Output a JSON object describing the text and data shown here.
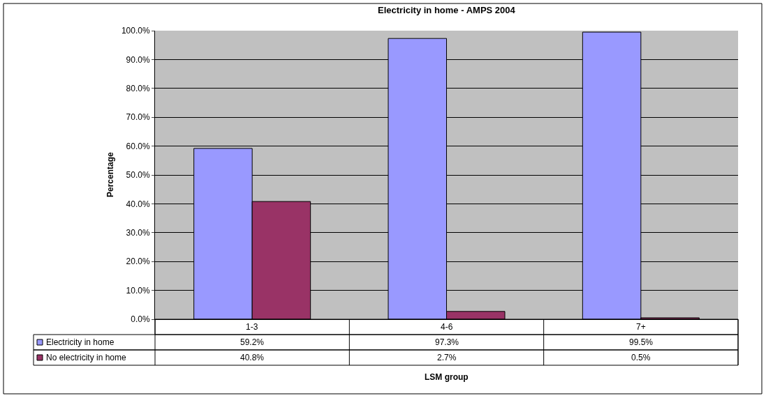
{
  "chart_data": {
    "type": "bar",
    "title": "Electricity in home - AMPS 2004",
    "xlabel": "LSM group",
    "ylabel": "Percentage",
    "categories": [
      "1-3",
      "4-6",
      "7+"
    ],
    "series": [
      {
        "name": "Electricity in home",
        "color": "#9999ff",
        "values": [
          59.2,
          97.3,
          99.5
        ],
        "value_labels": [
          "59.2%",
          "97.3%",
          "99.5%"
        ]
      },
      {
        "name": "No electricity in home",
        "color": "#993366",
        "values": [
          40.8,
          2.7,
          0.5
        ],
        "value_labels": [
          "40.8%",
          "2.7%",
          "0.5%"
        ]
      }
    ],
    "ylim": [
      0,
      100
    ],
    "yticks": [
      {
        "value": 0,
        "label": "0.0%"
      },
      {
        "value": 10,
        "label": "10.0%"
      },
      {
        "value": 20,
        "label": "20.0%"
      },
      {
        "value": 30,
        "label": "30.0%"
      },
      {
        "value": 40,
        "label": "40.0%"
      },
      {
        "value": 50,
        "label": "50.0%"
      },
      {
        "value": 60,
        "label": "60.0%"
      },
      {
        "value": 70,
        "label": "70.0%"
      },
      {
        "value": 80,
        "label": "80.0%"
      },
      {
        "value": 90,
        "label": "90.0%"
      },
      {
        "value": 100,
        "label": "100.0%"
      }
    ],
    "grid": "y",
    "legend": "bottom"
  }
}
